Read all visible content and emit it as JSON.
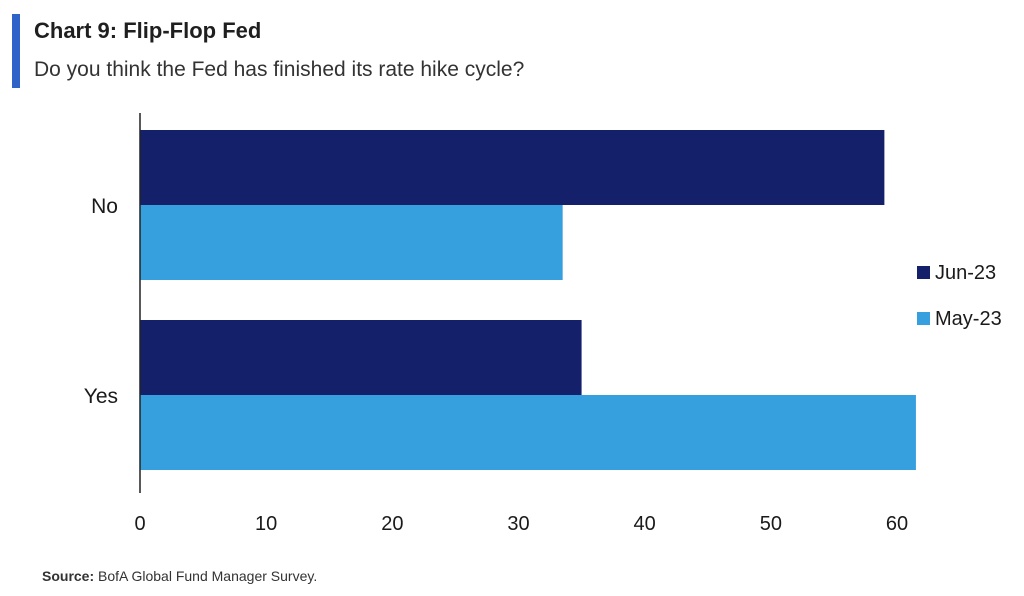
{
  "header": {
    "title": "Chart 9: Flip-Flop Fed",
    "subtitle": "Do you think the Fed has finished its rate hike cycle?",
    "accent_color": "#2f63c8"
  },
  "footer": {
    "source_label": "Source:",
    "source_text": "BofA Global Fund Manager Survey."
  },
  "chart_data": {
    "type": "bar",
    "orientation": "horizontal",
    "categories": [
      "No",
      "Yes"
    ],
    "series": [
      {
        "name": "Jun-23",
        "values": [
          59,
          35
        ],
        "color": "#15206b"
      },
      {
        "name": "May-23",
        "values": [
          33.5,
          61.5
        ],
        "color": "#36a0de"
      }
    ],
    "xlim": [
      0,
      60
    ],
    "xticks": [
      "0",
      "10",
      "20",
      "30",
      "40",
      "50",
      "60"
    ],
    "grid": false,
    "legend_position": "right"
  }
}
